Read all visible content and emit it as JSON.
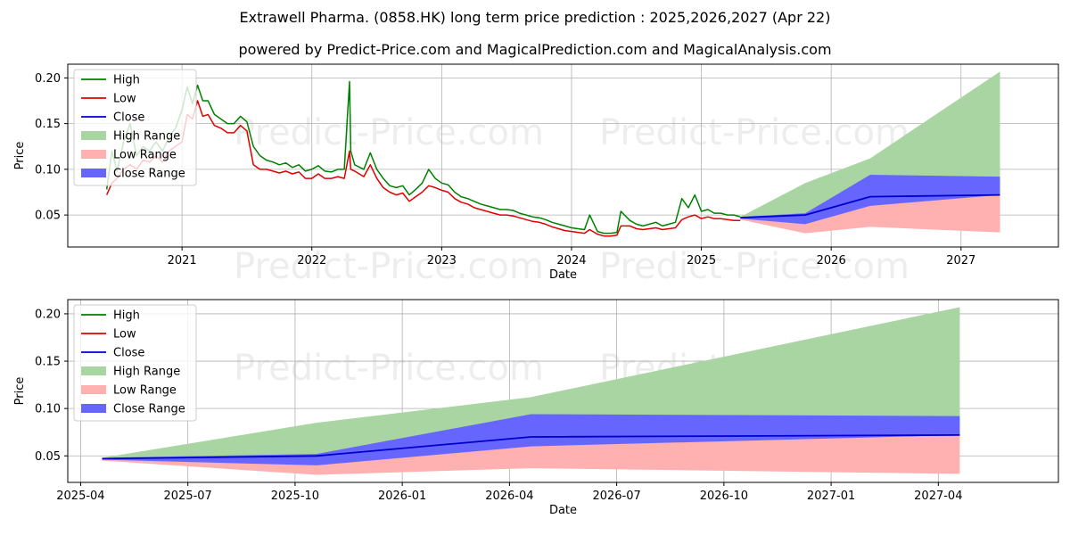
{
  "header": {
    "title": "Extrawell Pharma. (0858.HK) long term price prediction : 2025,2026,2027 (Apr 22)",
    "subtitle": "powered by Predict-Price.com and MagicalPrediction.com and MagicalAnalysis.com"
  },
  "watermark": "Predict-Price.com",
  "colors": {
    "high": "#008000",
    "low": "#e00000",
    "close": "#0000cc",
    "high_range": "#a9d5a3",
    "low_range": "#ffb0b0",
    "close_range": "#6666ff",
    "grid": "#b0b0b0"
  },
  "legend": {
    "high": "High",
    "low": "Low",
    "close": "Close",
    "high_range": "High Range",
    "low_range": "Low Range",
    "close_range": "Close Range"
  },
  "chart_data": [
    {
      "type": "line",
      "xlabel": "Date",
      "ylabel": "Price",
      "xlim": [
        2020.12,
        2027.75
      ],
      "ylim": [
        0.015,
        0.215
      ],
      "x_ticks": [
        2021,
        2022,
        2023,
        2024,
        2025,
        2026,
        2027
      ],
      "x_tick_labels": [
        "2021",
        "2022",
        "2023",
        "2024",
        "2025",
        "2026",
        "2027"
      ],
      "y_ticks": [
        0.05,
        0.1,
        0.15,
        0.2
      ],
      "y_tick_labels": [
        "0.05",
        "0.10",
        "0.15",
        "0.20"
      ],
      "grid": true,
      "legend_position": "upper-left",
      "series": [
        {
          "name": "High",
          "x": [
            2020.42,
            2020.46,
            2020.5,
            2020.55,
            2020.6,
            2020.65,
            2020.7,
            2020.75,
            2020.8,
            2020.85,
            2020.9,
            2020.95,
            2021.0,
            2021.04,
            2021.08,
            2021.12,
            2021.16,
            2021.2,
            2021.25,
            2021.3,
            2021.35,
            2021.4,
            2021.45,
            2021.5,
            2021.55,
            2021.6,
            2021.65,
            2021.7,
            2021.75,
            2021.8,
            2021.85,
            2021.9,
            2021.95,
            2022.0,
            2022.05,
            2022.1,
            2022.15,
            2022.2,
            2022.25,
            2022.29,
            2022.3,
            2022.33,
            2022.4,
            2022.45,
            2022.5,
            2022.55,
            2022.6,
            2022.65,
            2022.7,
            2022.75,
            2022.8,
            2022.85,
            2022.9,
            2022.95,
            2023.0,
            2023.05,
            2023.1,
            2023.15,
            2023.2,
            2023.25,
            2023.3,
            2023.35,
            2023.4,
            2023.45,
            2023.5,
            2023.55,
            2023.6,
            2023.65,
            2023.7,
            2023.75,
            2023.8,
            2023.85,
            2023.9,
            2023.95,
            2024.0,
            2024.05,
            2024.1,
            2024.14,
            2024.2,
            2024.25,
            2024.3,
            2024.35,
            2024.38,
            2024.45,
            2024.5,
            2024.55,
            2024.6,
            2024.65,
            2024.7,
            2024.75,
            2024.8,
            2024.85,
            2024.9,
            2024.95,
            2025.0,
            2025.05,
            2025.1,
            2025.15,
            2025.2,
            2025.25,
            2025.3
          ],
          "values": [
            0.078,
            0.12,
            0.098,
            0.13,
            0.15,
            0.115,
            0.125,
            0.12,
            0.13,
            0.12,
            0.135,
            0.145,
            0.165,
            0.19,
            0.172,
            0.192,
            0.175,
            0.175,
            0.16,
            0.155,
            0.15,
            0.15,
            0.158,
            0.152,
            0.125,
            0.115,
            0.11,
            0.108,
            0.105,
            0.107,
            0.102,
            0.105,
            0.098,
            0.1,
            0.104,
            0.098,
            0.097,
            0.1,
            0.1,
            0.196,
            0.12,
            0.105,
            0.1,
            0.118,
            0.1,
            0.09,
            0.082,
            0.08,
            0.082,
            0.072,
            0.078,
            0.085,
            0.1,
            0.09,
            0.085,
            0.083,
            0.075,
            0.07,
            0.068,
            0.065,
            0.062,
            0.06,
            0.058,
            0.056,
            0.056,
            0.055,
            0.052,
            0.05,
            0.048,
            0.047,
            0.045,
            0.042,
            0.04,
            0.038,
            0.036,
            0.035,
            0.034,
            0.05,
            0.032,
            0.03,
            0.03,
            0.031,
            0.054,
            0.044,
            0.04,
            0.038,
            0.04,
            0.042,
            0.038,
            0.04,
            0.042,
            0.068,
            0.058,
            0.072,
            0.054,
            0.056,
            0.052,
            0.052,
            0.05,
            0.05,
            0.048
          ]
        },
        {
          "name": "Low",
          "x": [
            2020.42,
            2020.46,
            2020.5,
            2020.55,
            2020.6,
            2020.65,
            2020.7,
            2020.75,
            2020.8,
            2020.85,
            2020.9,
            2020.95,
            2021.0,
            2021.04,
            2021.08,
            2021.12,
            2021.16,
            2021.2,
            2021.25,
            2021.3,
            2021.35,
            2021.4,
            2021.45,
            2021.5,
            2021.55,
            2021.6,
            2021.65,
            2021.7,
            2021.75,
            2021.8,
            2021.85,
            2021.9,
            2021.95,
            2022.0,
            2022.05,
            2022.1,
            2022.15,
            2022.2,
            2022.25,
            2022.29,
            2022.3,
            2022.33,
            2022.4,
            2022.45,
            2022.5,
            2022.55,
            2022.6,
            2022.65,
            2022.7,
            2022.75,
            2022.8,
            2022.85,
            2022.9,
            2022.95,
            2023.0,
            2023.05,
            2023.1,
            2023.15,
            2023.2,
            2023.25,
            2023.3,
            2023.35,
            2023.4,
            2023.45,
            2023.5,
            2023.55,
            2023.6,
            2023.65,
            2023.7,
            2023.75,
            2023.8,
            2023.85,
            2023.9,
            2023.95,
            2024.0,
            2024.05,
            2024.1,
            2024.14,
            2024.2,
            2024.25,
            2024.3,
            2024.35,
            2024.38,
            2024.45,
            2024.5,
            2024.55,
            2024.6,
            2024.65,
            2024.7,
            2024.75,
            2024.8,
            2024.85,
            2024.9,
            2024.95,
            2025.0,
            2025.05,
            2025.1,
            2025.15,
            2025.2,
            2025.25,
            2025.3
          ],
          "values": [
            0.072,
            0.085,
            0.09,
            0.1,
            0.105,
            0.1,
            0.11,
            0.108,
            0.115,
            0.108,
            0.12,
            0.125,
            0.13,
            0.16,
            0.155,
            0.175,
            0.158,
            0.16,
            0.148,
            0.145,
            0.14,
            0.14,
            0.148,
            0.142,
            0.105,
            0.1,
            0.1,
            0.098,
            0.096,
            0.098,
            0.095,
            0.097,
            0.09,
            0.09,
            0.095,
            0.09,
            0.09,
            0.092,
            0.09,
            0.12,
            0.1,
            0.098,
            0.092,
            0.105,
            0.09,
            0.08,
            0.075,
            0.072,
            0.074,
            0.065,
            0.07,
            0.075,
            0.082,
            0.08,
            0.077,
            0.075,
            0.068,
            0.064,
            0.062,
            0.058,
            0.056,
            0.054,
            0.052,
            0.05,
            0.05,
            0.049,
            0.047,
            0.045,
            0.043,
            0.042,
            0.04,
            0.037,
            0.035,
            0.033,
            0.032,
            0.031,
            0.03,
            0.034,
            0.029,
            0.027,
            0.027,
            0.028,
            0.038,
            0.038,
            0.035,
            0.034,
            0.035,
            0.036,
            0.034,
            0.035,
            0.036,
            0.045,
            0.048,
            0.05,
            0.046,
            0.048,
            0.046,
            0.046,
            0.045,
            0.044,
            0.044
          ]
        },
        {
          "name": "Close",
          "x": [
            2025.3,
            2025.8,
            2026.3,
            2027.3
          ],
          "values": [
            0.047,
            0.05,
            0.07,
            0.072
          ]
        },
        {
          "name": "High Range",
          "x": [
            2025.3,
            2025.8,
            2026.3,
            2027.3
          ],
          "upper": [
            0.048,
            0.085,
            0.112,
            0.207
          ],
          "lower": [
            0.047,
            0.05,
            0.07,
            0.072
          ]
        },
        {
          "name": "Low Range",
          "x": [
            2025.3,
            2025.8,
            2026.3,
            2027.3
          ],
          "upper": [
            0.047,
            0.05,
            0.07,
            0.072
          ],
          "lower": [
            0.045,
            0.03,
            0.037,
            0.031
          ]
        },
        {
          "name": "Close Range",
          "x": [
            2025.3,
            2025.8,
            2026.3,
            2027.3
          ],
          "upper": [
            0.048,
            0.052,
            0.094,
            0.092
          ],
          "lower": [
            0.046,
            0.04,
            0.06,
            0.072
          ]
        }
      ]
    },
    {
      "type": "line",
      "xlabel": "Date",
      "ylabel": "Price",
      "xlim": [
        2025.22,
        2027.53
      ],
      "ylim": [
        0.022,
        0.215
      ],
      "x_ticks": [
        2025.25,
        2025.5,
        2025.75,
        2026.0,
        2026.25,
        2026.5,
        2026.75,
        2027.0,
        2027.25
      ],
      "x_tick_labels": [
        "2025-04",
        "2025-07",
        "2025-10",
        "2026-01",
        "2026-04",
        "2026-07",
        "2026-10",
        "2027-01",
        "2027-04"
      ],
      "y_ticks": [
        0.05,
        0.1,
        0.15,
        0.2
      ],
      "y_tick_labels": [
        "0.05",
        "0.10",
        "0.15",
        "0.20"
      ],
      "grid": true,
      "legend_position": "upper-left",
      "series": [
        {
          "name": "Close",
          "x": [
            2025.3,
            2025.8,
            2026.3,
            2027.3
          ],
          "values": [
            0.047,
            0.05,
            0.07,
            0.072
          ]
        },
        {
          "name": "High Range",
          "x": [
            2025.3,
            2025.8,
            2026.3,
            2027.3
          ],
          "upper": [
            0.048,
            0.085,
            0.112,
            0.207
          ],
          "lower": [
            0.047,
            0.05,
            0.07,
            0.072
          ]
        },
        {
          "name": "Low Range",
          "x": [
            2025.3,
            2025.8,
            2026.3,
            2027.3
          ],
          "upper": [
            0.047,
            0.05,
            0.07,
            0.072
          ],
          "lower": [
            0.045,
            0.03,
            0.037,
            0.031
          ]
        },
        {
          "name": "Close Range",
          "x": [
            2025.3,
            2025.8,
            2026.3,
            2027.3
          ],
          "upper": [
            0.048,
            0.052,
            0.094,
            0.092
          ],
          "lower": [
            0.046,
            0.04,
            0.06,
            0.072
          ]
        }
      ]
    }
  ]
}
